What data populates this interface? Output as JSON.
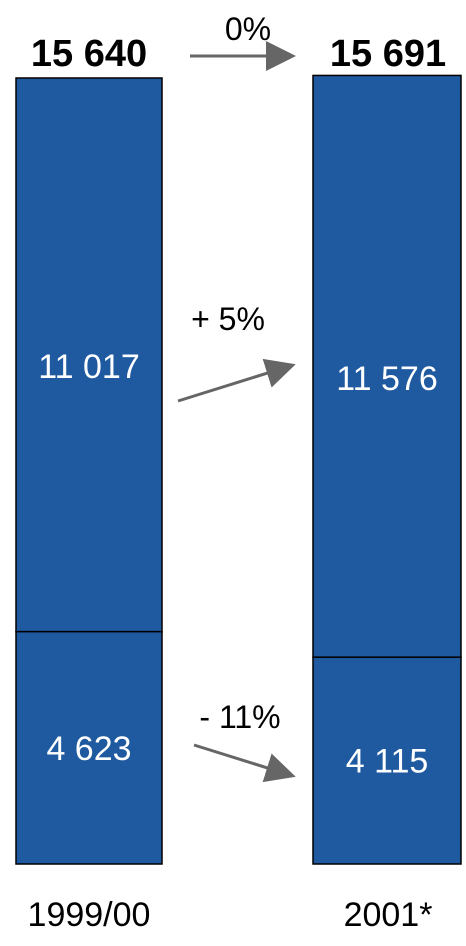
{
  "chart_data": {
    "type": "bar",
    "stacked": true,
    "categories": [
      "1999/00",
      "2001*"
    ],
    "totals": [
      "15 640",
      "15 691"
    ],
    "series": [
      {
        "values": [
          4623,
          4115
        ],
        "labels": [
          "4 623",
          "4 115"
        ]
      },
      {
        "values": [
          11017,
          11576
        ],
        "labels": [
          "11 017",
          "11 576"
        ]
      }
    ],
    "changes": {
      "total": "0%",
      "upper": "+ 5%",
      "lower": "- 11%"
    },
    "colors": {
      "bar": "#1f5aa0",
      "border": "#000000",
      "arrow": "#666666"
    }
  }
}
